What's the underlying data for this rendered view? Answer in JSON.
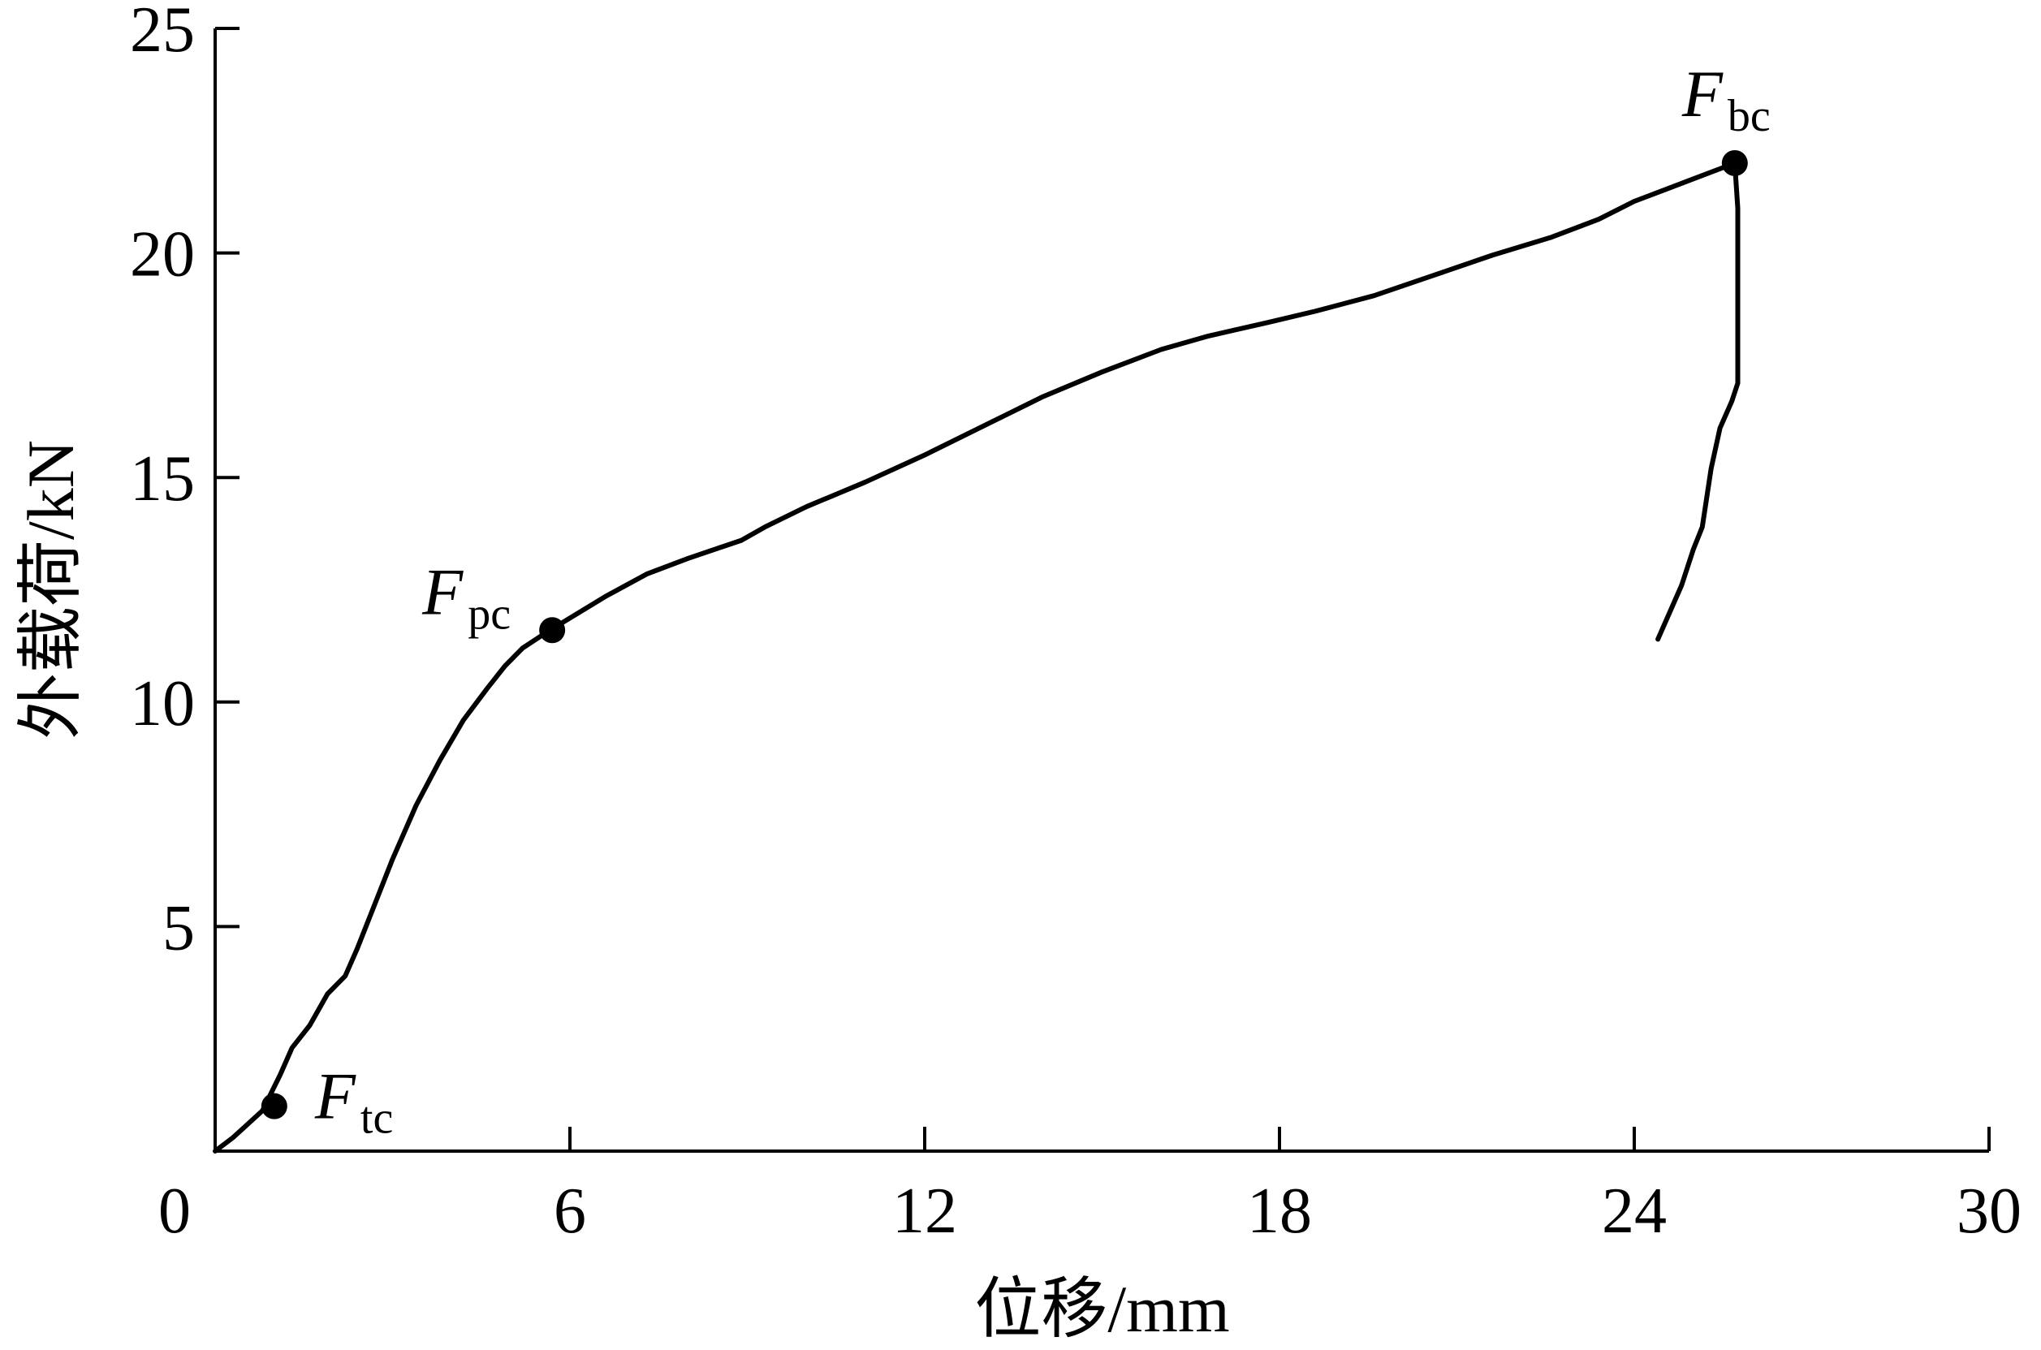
{
  "chart_data": {
    "type": "line",
    "title": "",
    "xlabel": "位移/mm",
    "ylabel": "外载荷/kN",
    "xlim": [
      0,
      30
    ],
    "ylim": [
      0,
      25
    ],
    "x_ticks": [
      "0",
      "6",
      "12",
      "18",
      "24",
      "30"
    ],
    "y_ticks": [
      "5",
      "10",
      "15",
      "20",
      "25"
    ],
    "grid": false,
    "series": [
      {
        "color": "#000000",
        "x": [
          0.0,
          0.3,
          0.55,
          0.8,
          0.95,
          1.1,
          1.3,
          1.6,
          1.9,
          2.2,
          2.4,
          2.7,
          3.0,
          3.4,
          3.8,
          4.2,
          4.6,
          4.9,
          5.2,
          5.6,
          6.1,
          6.6,
          7.3,
          8.0,
          8.9,
          9.3,
          10.0,
          11.0,
          12.0,
          13.0,
          14.0,
          15.0,
          16.0,
          16.8,
          17.8,
          18.6,
          19.6,
          20.6,
          21.6,
          22.6,
          23.4,
          24.0,
          24.6,
          25.1,
          25.7,
          25.75,
          25.75,
          25.65,
          25.45,
          25.3,
          25.15,
          25.0,
          24.8,
          24.6,
          24.4
        ],
        "y": [
          0.0,
          0.3,
          0.6,
          0.9,
          1.3,
          1.7,
          2.3,
          2.8,
          3.5,
          3.9,
          4.5,
          5.5,
          6.5,
          7.7,
          8.7,
          9.6,
          10.3,
          10.8,
          11.2,
          11.55,
          11.95,
          12.35,
          12.85,
          13.2,
          13.6,
          13.9,
          14.35,
          14.9,
          15.5,
          16.15,
          16.8,
          17.35,
          17.85,
          18.15,
          18.45,
          18.7,
          19.05,
          19.5,
          19.95,
          20.35,
          20.75,
          21.15,
          21.45,
          21.7,
          22.0,
          21.0,
          17.1,
          16.7,
          16.1,
          15.2,
          13.9,
          13.4,
          12.6,
          12.0,
          11.4
        ]
      }
    ],
    "points": [
      {
        "label": "F",
        "sub": "tc",
        "x": 1.0,
        "y": 1.0
      },
      {
        "label": "F",
        "sub": "pc",
        "x": 5.7,
        "y": 11.6
      },
      {
        "label": "F",
        "sub": "bc",
        "x": 25.7,
        "y": 22.0
      }
    ]
  }
}
